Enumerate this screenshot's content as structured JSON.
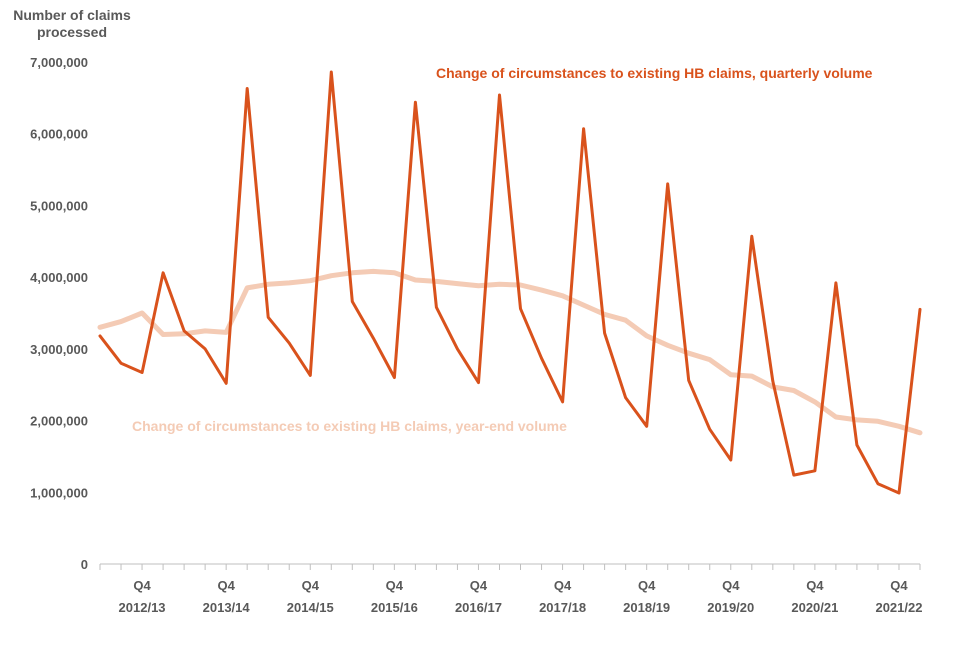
{
  "chart_data": {
    "type": "line",
    "ylabel_lines": [
      "Number of claims",
      "processed"
    ],
    "ylim": [
      0,
      7000000
    ],
    "yticks": [
      0,
      1000000,
      2000000,
      3000000,
      4000000,
      5000000,
      6000000,
      7000000
    ],
    "ytick_labels": [
      "0",
      "1,000,000",
      "2,000,000",
      "3,000,000",
      "4,000,000",
      "5,000,000",
      "6,000,000",
      "7,000,000"
    ],
    "x_count": 40,
    "x_ticks": [
      {
        "index": 2,
        "q": "Q4",
        "year": "2012/13"
      },
      {
        "index": 6,
        "q": "Q4",
        "year": "2013/14"
      },
      {
        "index": 10,
        "q": "Q4",
        "year": "2014/15"
      },
      {
        "index": 14,
        "q": "Q4",
        "year": "2015/16"
      },
      {
        "index": 18,
        "q": "Q4",
        "year": "2016/17"
      },
      {
        "index": 22,
        "q": "Q4",
        "year": "2017/18"
      },
      {
        "index": 26,
        "q": "Q4",
        "year": "2018/19"
      },
      {
        "index": 30,
        "q": "Q4",
        "year": "2019/20"
      },
      {
        "index": 34,
        "q": "Q4",
        "year": "2020/21"
      },
      {
        "index": 38,
        "q": "Q4",
        "year": "2021/22"
      }
    ],
    "series": [
      {
        "name": "Change of circumstances to existing HB claims, year-end volume",
        "color": "#f4cbb5",
        "values": [
          3300000,
          3380000,
          3500000,
          3200000,
          3210000,
          3250000,
          3230000,
          3850000,
          3900000,
          3920000,
          3950000,
          4020000,
          4060000,
          4080000,
          4060000,
          3960000,
          3940000,
          3910000,
          3880000,
          3900000,
          3890000,
          3820000,
          3740000,
          3610000,
          3480000,
          3400000,
          3180000,
          3050000,
          2940000,
          2850000,
          2640000,
          2620000,
          2470000,
          2420000,
          2260000,
          2050000,
          2010000,
          1990000,
          1920000,
          1830000
        ]
      },
      {
        "name": "Change of circumstances to existing HB claims, quarterly volume",
        "color": "#d9521c",
        "values": [
          3180000,
          2800000,
          2670000,
          4060000,
          3250000,
          3000000,
          2520000,
          6630000,
          3440000,
          3080000,
          2630000,
          6860000,
          3660000,
          3150000,
          2600000,
          6440000,
          3580000,
          3000000,
          2530000,
          6540000,
          3560000,
          2870000,
          2260000,
          6070000,
          3220000,
          2320000,
          1920000,
          5300000,
          2560000,
          1880000,
          1450000,
          4570000,
          2550000,
          1240000,
          1300000,
          3920000,
          1660000,
          1120000,
          990000,
          3550000
        ]
      }
    ],
    "annotations": {
      "quarterly": "Change of circumstances to existing HB claims, quarterly volume",
      "yearend": "Change of circumstances to existing HB claims, year-end volume"
    }
  }
}
